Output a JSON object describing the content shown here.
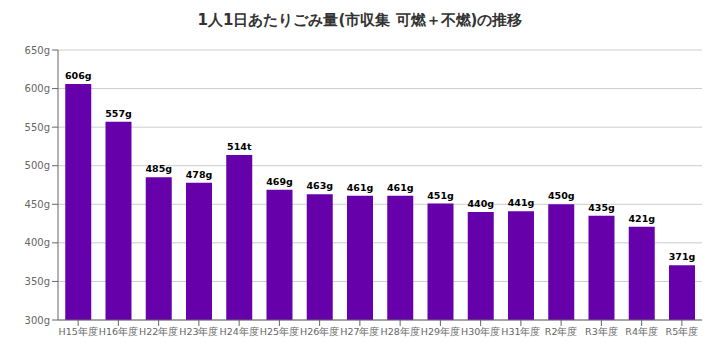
{
  "chart_data": {
    "type": "bar",
    "title": "1人1日あたりごみ量(市収集 可燃＋不燃)の推移",
    "categories": [
      "H15年度",
      "H16年度",
      "H22年度",
      "H23年度",
      "H24年度",
      "H25年度",
      "H26年度",
      "H27年度",
      "H28年度",
      "H29年度",
      "H30年度",
      "H31年度",
      "R2年度",
      "R3年度",
      "R4年度",
      "R5年度"
    ],
    "values": [
      606,
      557,
      485,
      478,
      514,
      469,
      463,
      461,
      461,
      451,
      440,
      441,
      450,
      435,
      421,
      371
    ],
    "value_labels": [
      "606g",
      "557g",
      "485g",
      "478g",
      "514t",
      "469g",
      "463g",
      "461g",
      "461g",
      "451g",
      "440g",
      "441g",
      "450g",
      "435g",
      "421g",
      "371g"
    ],
    "color": "#6600aa",
    "ylim": [
      300,
      650
    ],
    "yticks": [
      {
        "value": 300,
        "label": "300g"
      },
      {
        "value": 350,
        "label": "350g"
      },
      {
        "value": 400,
        "label": "400g"
      },
      {
        "value": 450,
        "label": "450g"
      },
      {
        "value": 500,
        "label": "500g"
      },
      {
        "value": 550,
        "label": "550g"
      },
      {
        "value": 600,
        "label": "600g"
      },
      {
        "value": 650,
        "label": "650g"
      }
    ],
    "grid": true,
    "data_labels": true
  }
}
